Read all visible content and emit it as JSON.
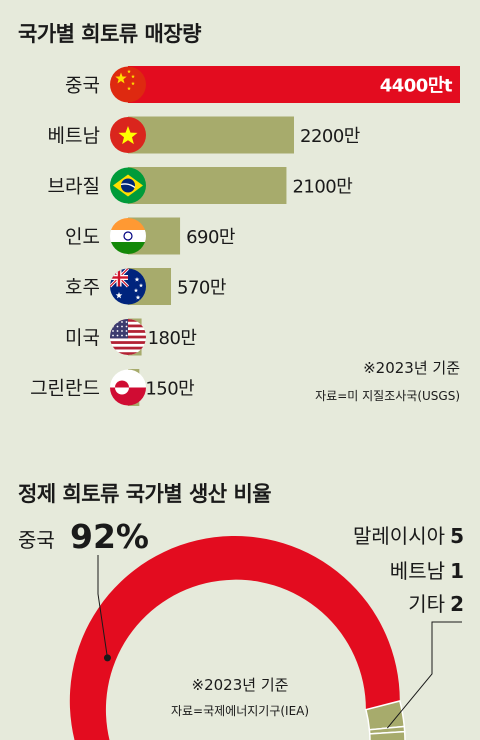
{
  "chart_data": [
    {
      "type": "bar",
      "title": "국가별 희토류 매장량",
      "categories": [
        "중국",
        "베트남",
        "브라질",
        "인도",
        "호주",
        "미국",
        "그린란드"
      ],
      "flags": [
        "china-flag-icon",
        "vietnam-flag-icon",
        "brazil-flag-icon",
        "india-flag-icon",
        "australia-flag-icon",
        "usa-flag-icon",
        "greenland-flag-icon"
      ],
      "values": [
        4400,
        2200,
        2100,
        690,
        570,
        180,
        150
      ],
      "value_labels": [
        "4400만t",
        "2200만",
        "2100만",
        "690만",
        "570만",
        "180만",
        "150만"
      ],
      "note": "※2023년 기준",
      "source": "자료=미 지질조사국(USGS)",
      "colors": {
        "highlight": "#e30c1f",
        "bar": "#a7ab6c"
      }
    },
    {
      "type": "pie",
      "title": "정제 희토류 국가별 생산 비율",
      "categories": [
        "중국",
        "말레이시아",
        "베트남",
        "기타"
      ],
      "values": [
        92,
        5,
        1,
        2
      ],
      "value_labels": [
        "92%",
        "5",
        "1",
        "2"
      ],
      "note": "※2023년 기준",
      "source": "자료=국제에너지기구(IEA)",
      "colors": {
        "china": "#e30c1f",
        "others": "#a7ab6c"
      }
    }
  ]
}
